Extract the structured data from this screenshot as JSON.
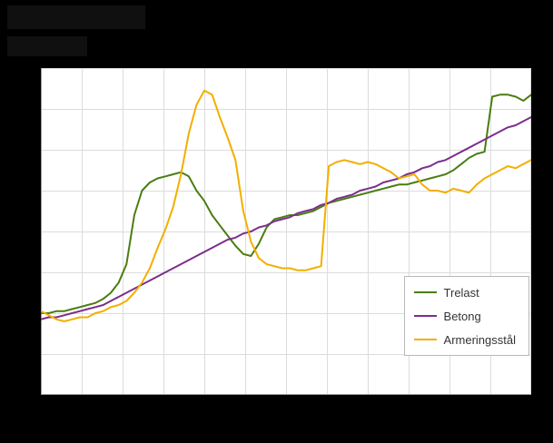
{
  "page": {
    "background_color": "#000000",
    "plot_background_color": "#ffffff",
    "gridline_color": "#dcdcdc",
    "axis_line_color": "#9e9e9e",
    "legend_border_color": "#b8b8b8",
    "legend_text_color": "#333333"
  },
  "chart_data": {
    "type": "line",
    "title": "",
    "xlabel": "",
    "ylabel": "",
    "x_count": 64,
    "ylim": [
      60,
      220
    ],
    "y_grid_step": 20,
    "x_grid_count": 12,
    "grid": true,
    "legend_position": "inside-bottom-right",
    "series": [
      {
        "name": "Trelast",
        "color": "#4a7d10",
        "values": [
          100,
          100,
          101,
          101,
          102,
          103,
          104,
          105,
          107,
          110,
          115,
          124,
          148,
          160,
          164,
          166,
          167,
          168,
          169,
          167,
          160,
          155,
          148,
          143,
          138,
          133,
          129,
          128,
          134,
          142,
          146,
          147,
          148,
          148,
          149,
          150,
          152,
          154,
          155,
          156,
          157,
          158,
          159,
          160,
          161,
          162,
          163,
          163,
          164,
          165,
          166,
          167,
          168,
          170,
          173,
          176,
          178,
          179,
          206,
          207,
          207,
          206,
          204,
          207
        ]
      },
      {
        "name": "Betong",
        "color": "#7b2e8d",
        "values": [
          97,
          98,
          98,
          99,
          100,
          101,
          102,
          103,
          104,
          106,
          108,
          110,
          112,
          114,
          116,
          118,
          120,
          122,
          124,
          126,
          128,
          130,
          132,
          134,
          136,
          137,
          139,
          140,
          142,
          143,
          145,
          146,
          147,
          149,
          150,
          151,
          153,
          154,
          156,
          157,
          158,
          160,
          161,
          162,
          164,
          165,
          166,
          168,
          169,
          171,
          172,
          174,
          175,
          177,
          179,
          181,
          183,
          185,
          187,
          189,
          191,
          192,
          194,
          196
        ]
      },
      {
        "name": "Armeringsstål",
        "color": "#f2af00",
        "values": [
          101,
          99,
          97,
          96,
          97,
          98,
          98,
          100,
          101,
          103,
          104,
          106,
          110,
          115,
          122,
          132,
          141,
          152,
          168,
          188,
          202,
          209,
          207,
          196,
          186,
          175,
          150,
          135,
          127,
          124,
          123,
          122,
          122,
          121,
          121,
          122,
          123,
          172,
          174,
          175,
          174,
          173,
          174,
          173,
          171,
          169,
          166,
          167,
          168,
          163,
          160,
          160,
          159,
          161,
          160,
          159,
          163,
          166,
          168,
          170,
          172,
          171,
          173,
          175
        ]
      }
    ]
  }
}
